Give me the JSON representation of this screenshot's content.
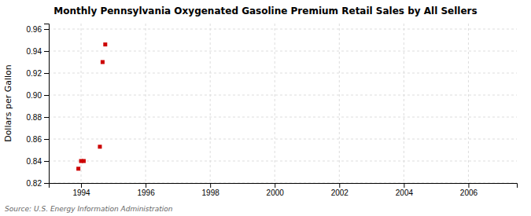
{
  "chart_data": {
    "type": "scatter",
    "title": "Monthly Pennsylvania Oxygenated Gasoline Premium Retail Sales by All Sellers",
    "ylabel": "Dollars per Gallon",
    "annotations": [
      "Source: U.S. Energy Information Administration"
    ],
    "x": [
      1993.917,
      1994.0,
      1994.083,
      1994.583,
      1994.667,
      1994.75
    ],
    "values": [
      0.833,
      0.84,
      0.84,
      0.853,
      0.93,
      0.946
    ],
    "color": "#cc0000",
    "marker": "square",
    "xlim": [
      1993.0,
      2007.5
    ],
    "ylim": [
      0.82,
      0.965
    ],
    "xticks": [
      1994,
      1996,
      1998,
      2000,
      2002,
      2004,
      2006
    ],
    "yticks": [
      0.82,
      0.84,
      0.86,
      0.88,
      {
        "value": 0.9,
        "label": "0.90"
      },
      0.92,
      0.94,
      0.96
    ],
    "grid": true
  }
}
